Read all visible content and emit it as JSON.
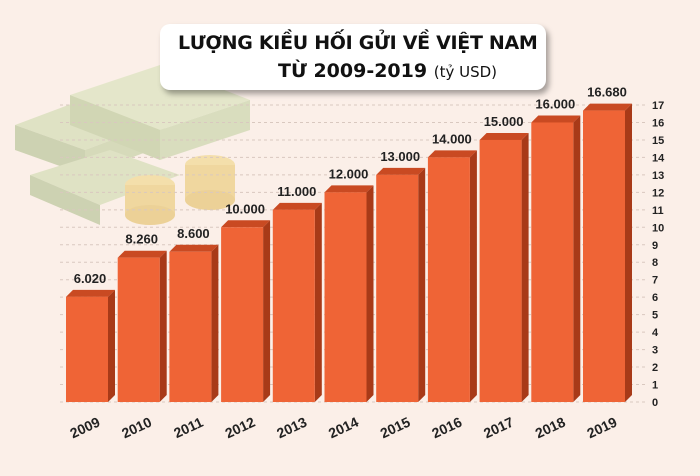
{
  "chart_data": {
    "type": "bar",
    "title": "LƯỢNG KIỀU HỐI GỬI VỀ VIỆT NAM",
    "subtitle": "TỪ 2009-2019",
    "unit": "(tỷ USD)",
    "categories": [
      "2009",
      "2010",
      "2011",
      "2012",
      "2013",
      "2014",
      "2015",
      "2016",
      "2017",
      "2018",
      "2019"
    ],
    "values": [
      6.02,
      8.26,
      8.6,
      10,
      11,
      12,
      13,
      14,
      15,
      16,
      16.68
    ],
    "data_labels": [
      "6.020",
      "8.260",
      "8.600",
      "10.000",
      "11.000",
      "12.000",
      "13.000",
      "14.000",
      "15.000",
      "16.000",
      "16.680"
    ],
    "ylim": [
      0,
      17
    ],
    "yticks": [
      0,
      1,
      2,
      3,
      4,
      5,
      6,
      7,
      8,
      9,
      10,
      11,
      12,
      13,
      14,
      15,
      16,
      17
    ],
    "y_axis_side": "right",
    "grid": "dashed horizontal",
    "colors": {
      "bar": "#ef6436",
      "bar_side": "#a83a18",
      "bar_top": "#c94a22",
      "background": "#fbefe8"
    },
    "decoration": "money-stack-illustration"
  }
}
